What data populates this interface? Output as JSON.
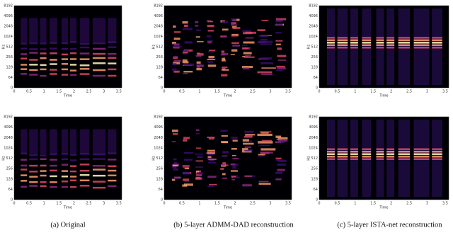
{
  "figure": {
    "axis": {
      "yticks": [
        "0",
        "64",
        "128",
        "256",
        "512",
        "1024",
        "2048",
        "4096",
        "8192"
      ],
      "xticks": [
        "0",
        "0.5",
        "1",
        "1.5",
        "2",
        "2.5",
        "3",
        "3.5"
      ],
      "xlabel": "Time",
      "ylabel": "Hz"
    },
    "panels": [
      {
        "caption": "(a) Original"
      },
      {
        "caption": "(b) 5-layer ADMM-DAD reconstruction"
      },
      {
        "caption": "(c) 5-layer ISTA-net reconstruction"
      }
    ]
  }
}
